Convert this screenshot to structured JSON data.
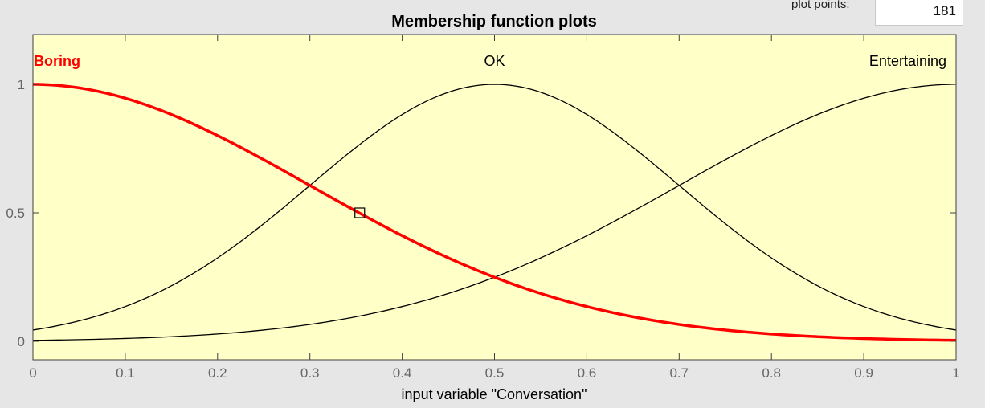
{
  "plot_points": {
    "label": "plot points:",
    "value": "181"
  },
  "chart_data": {
    "type": "line",
    "title": "Membership function plots",
    "xlabel": "input variable \"Conversation\"",
    "ylabel": "",
    "xlim": [
      0,
      1
    ],
    "ylim": [
      0,
      1
    ],
    "x_ticks": [
      "0",
      "0.1",
      "0.2",
      "0.3",
      "0.4",
      "0.5",
      "0.6",
      "0.7",
      "0.8",
      "0.9",
      "1"
    ],
    "y_ticks": [
      "0",
      "0.5",
      "1"
    ],
    "grid": false,
    "series": [
      {
        "name": "Boring",
        "shape": "gaussian",
        "center": 0.0,
        "sigma": 0.3,
        "selected": true,
        "color": "#ff0000"
      },
      {
        "name": "OK",
        "shape": "gaussian",
        "center": 0.5,
        "sigma": 0.2,
        "selected": false,
        "color": "#000000"
      },
      {
        "name": "Entertaining",
        "shape": "gaussian",
        "center": 1.0,
        "sigma": 0.3,
        "selected": false,
        "color": "#000000"
      }
    ],
    "marker": {
      "x": 0.354,
      "y": 0.5
    },
    "colors": {
      "plot_background": "#ffffc8",
      "axis": "#404040",
      "tick_label": "#666666"
    }
  }
}
